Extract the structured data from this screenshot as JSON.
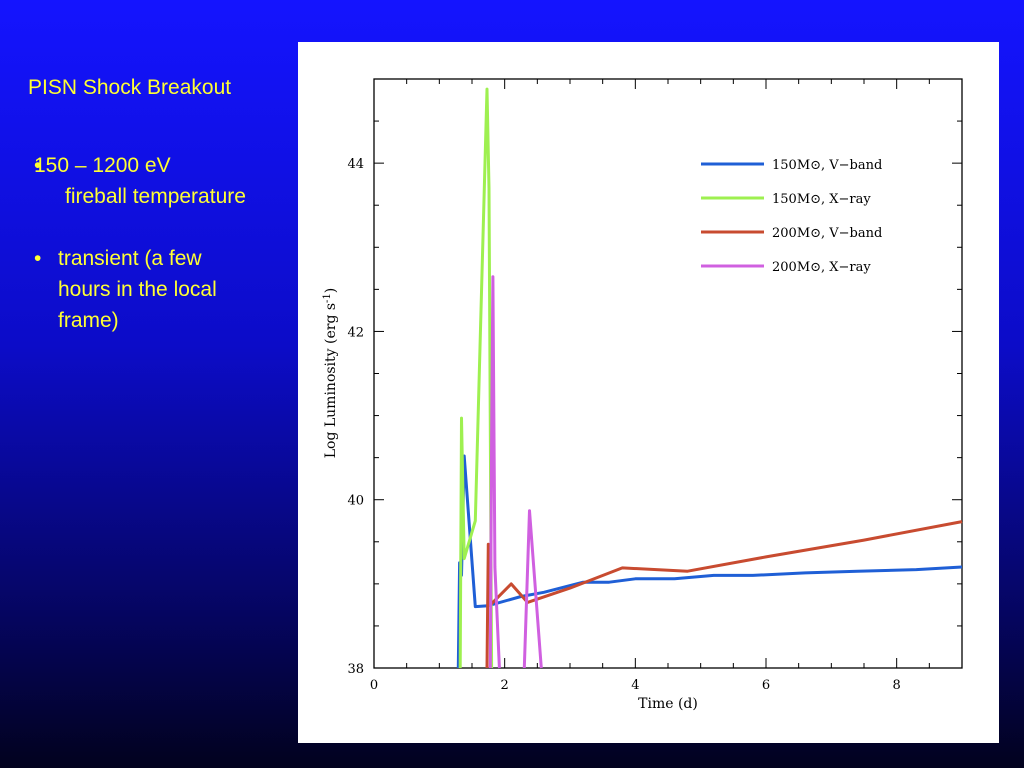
{
  "slide": {
    "title": "PISN Shock Breakout",
    "bullets": [
      {
        "marker": "•",
        "lines": [
          "150 – 1200 eV",
          "fireball temperature"
        ]
      },
      {
        "marker": "•",
        "lines": [
          "transient (a few",
          "hours in the local",
          "frame)"
        ]
      }
    ]
  },
  "chart_data": {
    "type": "line",
    "xlabel": "Time (d)",
    "ylabel": "Log Luminosity (erg s",
    "ylabel_sup": "-1",
    "ylabel_close": ")",
    "xlim": [
      0,
      9
    ],
    "ylim": [
      38,
      45
    ],
    "xticks": [
      0,
      2,
      4,
      6,
      8
    ],
    "yticks": [
      38,
      40,
      42,
      44
    ],
    "grid": false,
    "legend_position": "top-right",
    "series": [
      {
        "id": "s150v",
        "name": "150M⊙, V−band",
        "color": "#1f5fd6",
        "points": [
          [
            1.29,
            38.0
          ],
          [
            1.31,
            39.25
          ],
          [
            1.34,
            39.1
          ],
          [
            1.38,
            40.52
          ],
          [
            1.55,
            38.73
          ],
          [
            1.75,
            38.74
          ],
          [
            2.25,
            38.85
          ],
          [
            2.6,
            38.9
          ],
          [
            3.2,
            39.02
          ],
          [
            3.6,
            39.02
          ],
          [
            4.0,
            39.06
          ],
          [
            4.6,
            39.06
          ],
          [
            5.2,
            39.1
          ],
          [
            5.8,
            39.1
          ],
          [
            6.6,
            39.13
          ],
          [
            7.4,
            39.15
          ],
          [
            8.3,
            39.17
          ],
          [
            9.0,
            39.2
          ]
        ]
      },
      {
        "id": "s150x",
        "name": "150M⊙, X−ray",
        "color": "#9ef050",
        "points": [
          [
            1.32,
            38.0
          ],
          [
            1.34,
            40.97
          ],
          [
            1.38,
            39.3
          ],
          [
            1.55,
            39.75
          ],
          [
            1.73,
            44.88
          ],
          [
            1.76,
            43.7
          ],
          [
            1.8,
            38.0
          ]
        ]
      },
      {
        "id": "s200v",
        "name": "200M⊙, V−band",
        "color": "#c84b30",
        "points": [
          [
            1.73,
            38.0
          ],
          [
            1.75,
            39.47
          ],
          [
            1.78,
            38.75
          ],
          [
            2.1,
            39.0
          ],
          [
            2.35,
            38.78
          ],
          [
            3.0,
            38.95
          ],
          [
            3.8,
            39.19
          ],
          [
            4.8,
            39.15
          ],
          [
            6.0,
            39.32
          ],
          [
            7.5,
            39.52
          ],
          [
            9.0,
            39.74
          ]
        ]
      },
      {
        "id": "s200x",
        "name": "200M⊙, X−ray",
        "color": "#d060e0",
        "points": [
          [
            1.78,
            38.0
          ],
          [
            1.8,
            40.7
          ],
          [
            1.82,
            42.65
          ],
          [
            1.85,
            39.2
          ],
          [
            1.92,
            38.0
          ],
          [
            null,
            null
          ],
          [
            2.3,
            38.0
          ],
          [
            2.38,
            39.87
          ],
          [
            2.56,
            38.0
          ]
        ]
      }
    ]
  }
}
